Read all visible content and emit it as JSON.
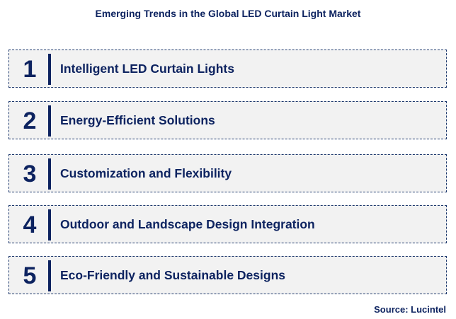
{
  "title": "Emerging Trends in the Global LED Curtain Light Market",
  "items": [
    {
      "num": "1",
      "label": "Intelligent LED Curtain Lights"
    },
    {
      "num": "2",
      "label": "Energy-Efficient Solutions"
    },
    {
      "num": "3",
      "label": "Customization and Flexibility"
    },
    {
      "num": "4",
      "label": "Outdoor and Landscape Design Integration"
    },
    {
      "num": "5",
      "label": "Eco-Friendly and Sustainable Designs"
    }
  ],
  "source": "Source: Lucintel",
  "colors": {
    "accent": "#0d2360",
    "box": "#f2f2f2"
  }
}
